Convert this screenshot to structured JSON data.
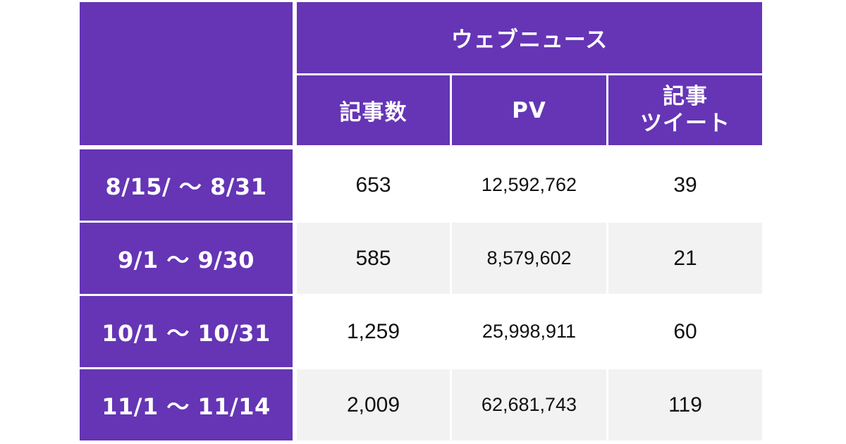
{
  "table": {
    "group_header": "ウェブニュース",
    "columns": [
      "記事数",
      "PV",
      "記事ツイート"
    ],
    "column_lines": {
      "article_tweets": [
        "記事",
        "ツイート"
      ]
    },
    "rows": [
      {
        "period": "8/15/ 〜 8/31",
        "articles": "653",
        "pv": "12,592,762",
        "tweets": "39"
      },
      {
        "period": "9/1 〜 9/30",
        "articles": "585",
        "pv": "8,579,602",
        "tweets": "21"
      },
      {
        "period": "10/1 〜 10/31",
        "articles": "1,259",
        "pv": "25,998,911",
        "tweets": "60"
      },
      {
        "period": "11/1 〜 11/14",
        "articles": "2,009",
        "pv": "62,681,743",
        "tweets": "119"
      }
    ],
    "colors": {
      "header_purple": "#6535b5",
      "header_text": "#ffffff",
      "stripe_grey": "#f2f2f2"
    }
  }
}
